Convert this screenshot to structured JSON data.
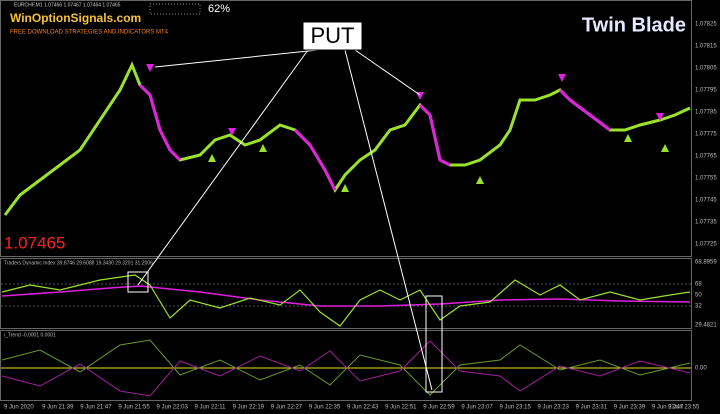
{
  "header": {
    "symbol_info": "EURCHF,M1 1.07466 1.07467 1.07464 1.07465",
    "site": "WinOptionSignals.com",
    "tagline": "FREE DOWNLOAD STRATEGIES AND INDICATORS MT4",
    "percent": "62%",
    "brand": "Twin Blade"
  },
  "annotation": {
    "label": "PUT"
  },
  "price": {
    "current": "1.07465",
    "axis_labels": [
      "1.07825",
      "1.07815",
      "1.07805",
      "1.07795",
      "1.07785",
      "1.07775",
      "1.07765",
      "1.07755",
      "1.07745",
      "1.07735",
      "1.07725"
    ]
  },
  "tdi": {
    "title": "Traders Dynamic Index 39.8746 29.6088 19.3430 29.3201 31.2006",
    "axis_labels": [
      "68.8959",
      "68",
      "50",
      "32",
      "29.4821"
    ]
  },
  "trend": {
    "title": "i_Trend -0.0001 0.0001",
    "axis_label": "0.00"
  },
  "time_axis": {
    "labels": [
      "9 Jun 2020",
      "9 Jun 21:39",
      "9 Jun 21:47",
      "9 Jun 21:55",
      "9 Jun 22:03",
      "9 Jun 22:11",
      "9 Jun 22:19",
      "9 Jun 22:27",
      "9 Jun 22:35",
      "9 Jun 22:43",
      "9 Jun 22:51",
      "9 Jun 22:59",
      "9 Jun 23:07",
      "9 Jun 23:15",
      "9 Jun 23:23",
      "9 Jun 23:31",
      "9 Jun 23:39",
      "9 Jun 23:47",
      "9 Jun 23:55"
    ]
  }
}
